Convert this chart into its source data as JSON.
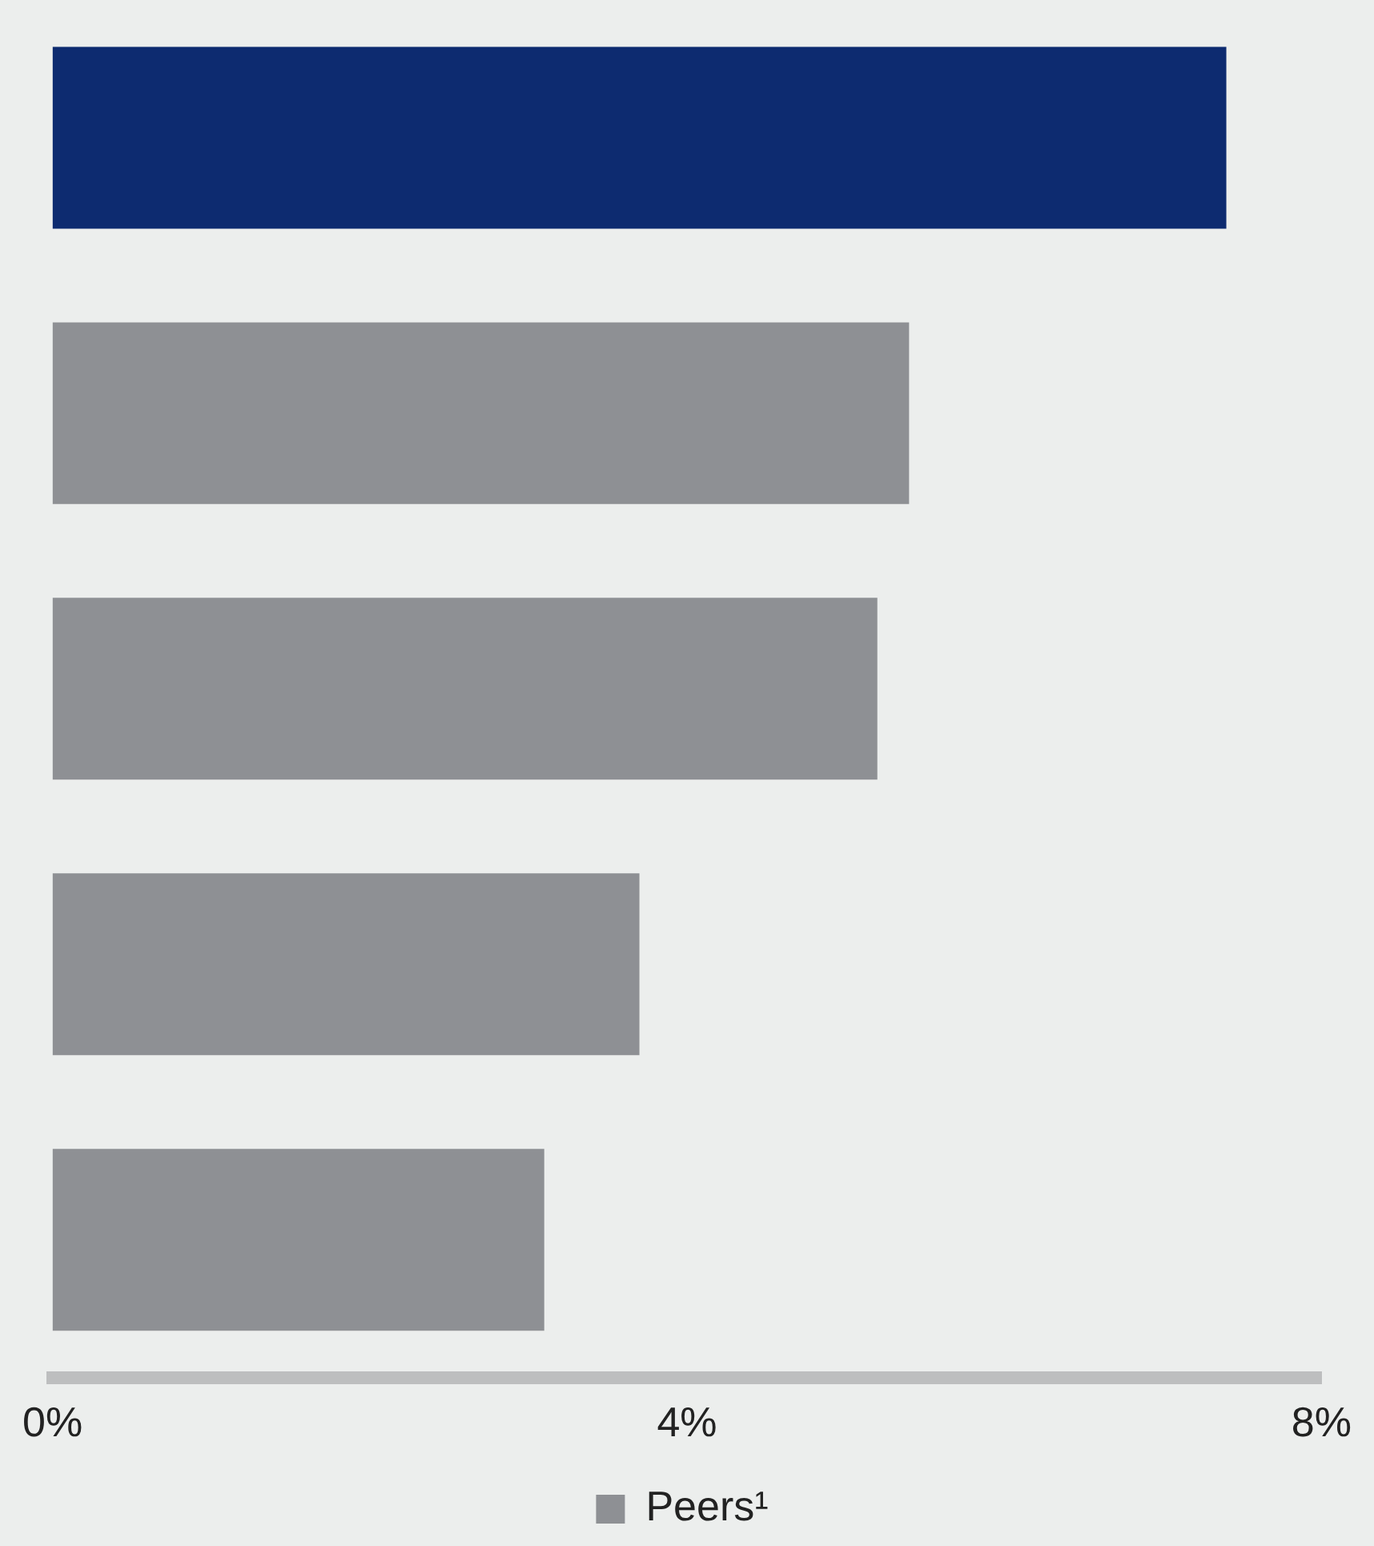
{
  "chart_data": {
    "type": "bar",
    "orientation": "horizontal",
    "categories": [
      null,
      null,
      null,
      null,
      null
    ],
    "series": [
      {
        "color": "#0d2b70",
        "values": [
          7.4,
          null,
          null,
          null,
          null
        ]
      },
      {
        "name": "Peers¹",
        "color": "#8e9094",
        "values": [
          null,
          5.4,
          5.2,
          3.7,
          3.1
        ]
      }
    ],
    "xlim": [
      0,
      8
    ],
    "xticks": [
      {
        "value": 0,
        "label": "0%"
      },
      {
        "value": 4,
        "label": "4%"
      },
      {
        "value": 8,
        "label": "8%"
      }
    ],
    "grid": false,
    "legend": "bottom",
    "stacked": true
  }
}
